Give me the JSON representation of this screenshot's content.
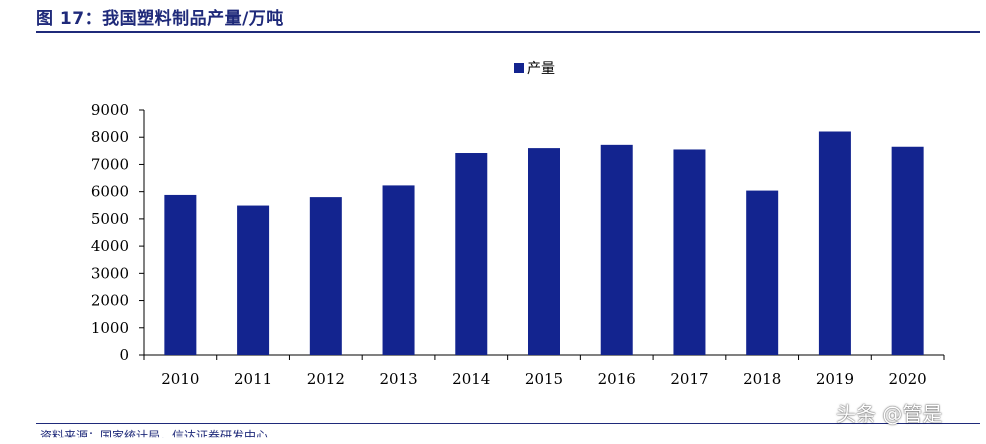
{
  "figure": {
    "title": "图 17：我国塑料制品产量/万吨",
    "source": "资料来源：国家统计局，信达证券研发中心",
    "watermark": "头条 @管是"
  },
  "colors": {
    "bar": "#13248f",
    "title": "#1f2a7a",
    "axis": "#000000"
  },
  "chart_data": {
    "type": "bar",
    "categories": [
      "2010",
      "2011",
      "2012",
      "2013",
      "2014",
      "2015",
      "2016",
      "2017",
      "2018",
      "2019",
      "2020"
    ],
    "series": [
      {
        "name": "产量",
        "values": [
          5880,
          5490,
          5800,
          6230,
          7420,
          7600,
          7720,
          7550,
          6040,
          8210,
          7650
        ]
      }
    ],
    "title": "",
    "xlabel": "",
    "ylabel": "",
    "ylim": [
      0,
      9000
    ],
    "yticks": [
      0,
      1000,
      2000,
      3000,
      4000,
      5000,
      6000,
      7000,
      8000,
      9000
    ],
    "grid": false,
    "legend_position": "top-center"
  }
}
